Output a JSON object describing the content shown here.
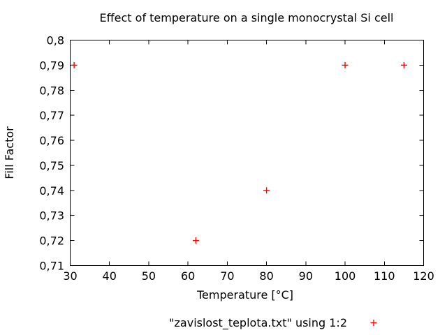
{
  "chart_data": {
    "type": "scatter",
    "title": "Effect of temperature on a single monocrystal Si cell",
    "xlabel": "Temperature [°C]",
    "ylabel": "Fill Factor",
    "xlim": [
      30,
      120
    ],
    "ylim": [
      0.71,
      0.8
    ],
    "xticks": [
      30,
      40,
      50,
      60,
      70,
      80,
      90,
      100,
      110,
      120
    ],
    "xtick_labels": [
      "30",
      "40",
      "50",
      "60",
      "70",
      "80",
      "90",
      "100",
      "110",
      "120"
    ],
    "yticks": [
      0.71,
      0.72,
      0.73,
      0.74,
      0.75,
      0.76,
      0.77,
      0.78,
      0.79,
      0.8
    ],
    "ytick_labels": [
      "0,71",
      "0,72",
      "0,73",
      "0,74",
      "0,75",
      "0,76",
      "0,77",
      "0,78",
      "0,79",
      "0,8"
    ],
    "grid": false,
    "legend_position": "below-plot-centered",
    "series": [
      {
        "name": "\"zavislost_teplota.txt\" using 1:2",
        "marker": "plus",
        "color": "#ff0000",
        "points": [
          [
            31,
            0.79
          ],
          [
            62,
            0.72
          ],
          [
            80,
            0.74
          ],
          [
            100,
            0.79
          ],
          [
            115,
            0.79
          ]
        ]
      }
    ],
    "colors": {
      "axis": "#000000",
      "text": "#000000",
      "background": "#ffffff"
    }
  }
}
